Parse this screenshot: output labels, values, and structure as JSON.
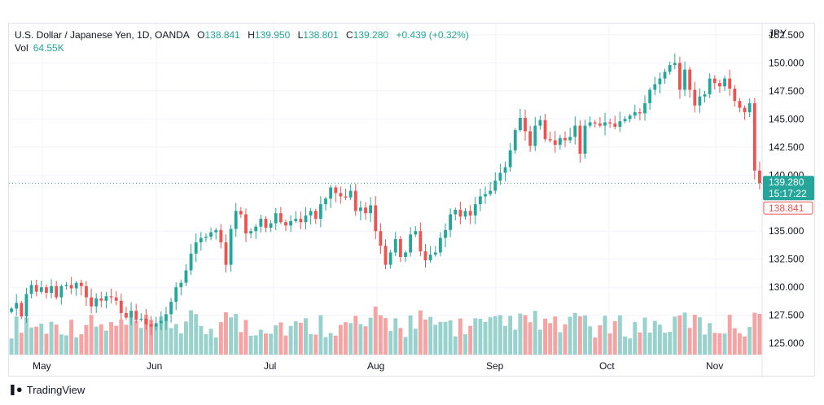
{
  "legend": {
    "symbol": "U.S. Dollar / Japanese Yen, 1D, OANDA",
    "open_label": "O",
    "open": "138.841",
    "high_label": "H",
    "high": "139.950",
    "low_label": "L",
    "low": "138.801",
    "close_label": "C",
    "close": "139.280",
    "change": "+0.439 (+0.32%)",
    "vol_label": "Vol",
    "vol": "64.55K"
  },
  "price_axis": {
    "currency": "JPY",
    "ticks": [
      "152.500",
      "150.000",
      "147.500",
      "145.000",
      "142.500",
      "140.000",
      "135.000",
      "132.500",
      "130.000",
      "127.500",
      "125.000"
    ],
    "last_price": "139.280",
    "countdown": "15:17:22",
    "open_marker": "138.841"
  },
  "time_axis": {
    "labels": [
      "May",
      "Jun",
      "Jul",
      "Aug",
      "Sep",
      "Oct",
      "Nov"
    ]
  },
  "brand": {
    "name": "TradingView"
  },
  "colors": {
    "up": "#26a69a",
    "down": "#ef5350",
    "up_vol": "#99d2cd",
    "down_vol": "#f5a3a3",
    "grid": "#f0f3fa"
  },
  "chart_data": {
    "type": "candlestick",
    "title": "U.S. Dollar / Japanese Yen, 1D, OANDA",
    "ylabel": "JPY",
    "ylim": [
      124,
      153.5
    ],
    "x": [
      "May",
      "Jun",
      "Jul",
      "Aug",
      "Sep",
      "Oct",
      "Nov"
    ],
    "last": 139.28,
    "closes": [
      128.1,
      128.6,
      127.4,
      129.4,
      130.2,
      129.6,
      130.0,
      129.5,
      130.1,
      129.1,
      130.1,
      130.2,
      129.9,
      130.4,
      130.1,
      129.1,
      128.3,
      129.0,
      128.8,
      129.2,
      129.1,
      128.8,
      127.7,
      127.3,
      127.9,
      127.1,
      127.2,
      126.7,
      126.5,
      126.8,
      127.0,
      127.6,
      128.7,
      130.0,
      130.4,
      131.5,
      133.0,
      134.0,
      134.4,
      134.5,
      134.9,
      135.1,
      134.0,
      132.0,
      135.2,
      136.8,
      136.5,
      134.8,
      135.0,
      135.4,
      136.1,
      135.3,
      135.7,
      136.6,
      135.8,
      135.5,
      135.9,
      136.1,
      135.8,
      136.4,
      136.8,
      136.1,
      137.4,
      137.9,
      138.9,
      138.4,
      138.1,
      138.0,
      138.6,
      136.8,
      137.1,
      136.6,
      137.3,
      135.0,
      133.7,
      132.0,
      133.1,
      134.3,
      132.7,
      133.1,
      134.7,
      135.0,
      133.2,
      132.4,
      132.9,
      133.1,
      134.4,
      135.1,
      136.5,
      136.9,
      136.3,
      136.8,
      136.4,
      137.4,
      138.1,
      138.3,
      138.6,
      139.5,
      140.2,
      140.7,
      142.2,
      144.0,
      145.1,
      143.9,
      142.6,
      144.4,
      144.9,
      143.2,
      143.1,
      142.7,
      143.3,
      143.1,
      143.4,
      144.4,
      141.9,
      144.4,
      144.7,
      144.6,
      144.4,
      144.7,
      144.6,
      144.3,
      144.8,
      145.0,
      145.3,
      145.6,
      145.5,
      146.4,
      147.6,
      148.1,
      148.6,
      149.2,
      149.8,
      150.0,
      147.6,
      149.4,
      147.6,
      146.2,
      147.0,
      147.2,
      148.6,
      148.2,
      147.9,
      148.6,
      147.7,
      146.6,
      146.0,
      145.6,
      146.4,
      140.4,
      139.28
    ]
  }
}
